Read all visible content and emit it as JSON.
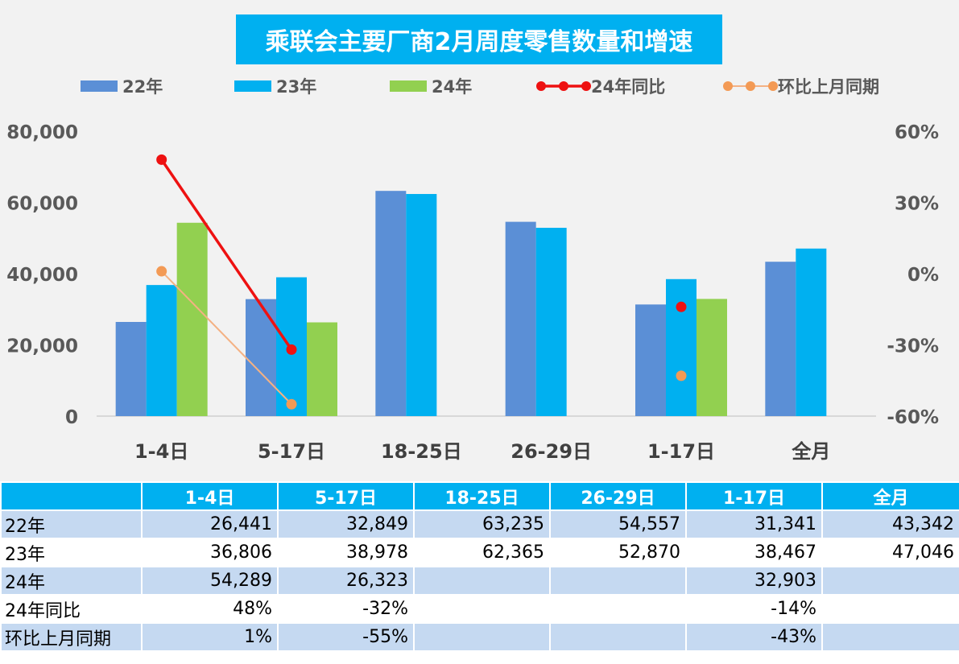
{
  "colors": {
    "s22": "#5b8fd6",
    "s23": "#00b0f0",
    "s24": "#92d050",
    "yoy": "#ee1111",
    "mom": "#f4b183",
    "mom_marker": "#f39a55",
    "title_bg": "#00b0f0",
    "table_header": "#00b0f0",
    "table_stripe": "#c5d9f1"
  },
  "chart_data": {
    "type": "bar",
    "title": "乘联会主要厂商2月周度零售数量和增速",
    "categories": [
      "1-4日",
      "5-17日",
      "18-25日",
      "26-29日",
      "1-17日",
      "全月"
    ],
    "series": [
      {
        "name": "22年",
        "values": [
          26441,
          32849,
          63235,
          54557,
          31341,
          43342
        ]
      },
      {
        "name": "23年",
        "values": [
          36806,
          38978,
          62365,
          52870,
          38467,
          47046
        ]
      },
      {
        "name": "24年",
        "values": [
          54289,
          26323,
          null,
          null,
          32903,
          null
        ]
      }
    ],
    "line_series": [
      {
        "name": "24年同比",
        "values": [
          48,
          -32,
          null,
          null,
          -14,
          null
        ],
        "connect": [
          [
            0,
            1
          ]
        ]
      },
      {
        "name": "环比上月同期",
        "values": [
          1,
          -55,
          null,
          null,
          -43,
          null
        ],
        "connect": [
          [
            0,
            1
          ]
        ]
      }
    ],
    "y_left": {
      "min": 0,
      "max": 80000,
      "ticks": [
        0,
        20000,
        40000,
        60000,
        80000
      ],
      "tick_labels": [
        "0",
        "20,000",
        "40,000",
        "60,000",
        "80,000"
      ]
    },
    "y_right": {
      "min": -60,
      "max": 60,
      "ticks": [
        -60,
        -30,
        0,
        30,
        60
      ],
      "tick_labels": [
        "-60%",
        "-30%",
        "0%",
        "30%",
        "60%"
      ]
    },
    "legend": [
      "22年",
      "23年",
      "24年",
      "24年同比",
      "环比上月同期"
    ],
    "legend_position": "top"
  },
  "table": {
    "headers": [
      "",
      "1-4日",
      "5-17日",
      "18-25日",
      "26-29日",
      "1-17日",
      "全月"
    ],
    "rows": [
      {
        "label": "22年",
        "cells": [
          "26,441",
          "32,849",
          "63,235",
          "54,557",
          "31,341",
          "43,342"
        ]
      },
      {
        "label": "23年",
        "cells": [
          "36,806",
          "38,978",
          "62,365",
          "52,870",
          "38,467",
          "47,046"
        ]
      },
      {
        "label": "24年",
        "cells": [
          "54,289",
          "26,323",
          "",
          "",
          "32,903",
          ""
        ]
      },
      {
        "label": "24年同比",
        "cells": [
          "48%",
          "-32%",
          "",
          "",
          "-14%",
          ""
        ]
      },
      {
        "label": "环比上月同期",
        "cells": [
          "1%",
          "-55%",
          "",
          "",
          "-43%",
          ""
        ]
      }
    ]
  }
}
